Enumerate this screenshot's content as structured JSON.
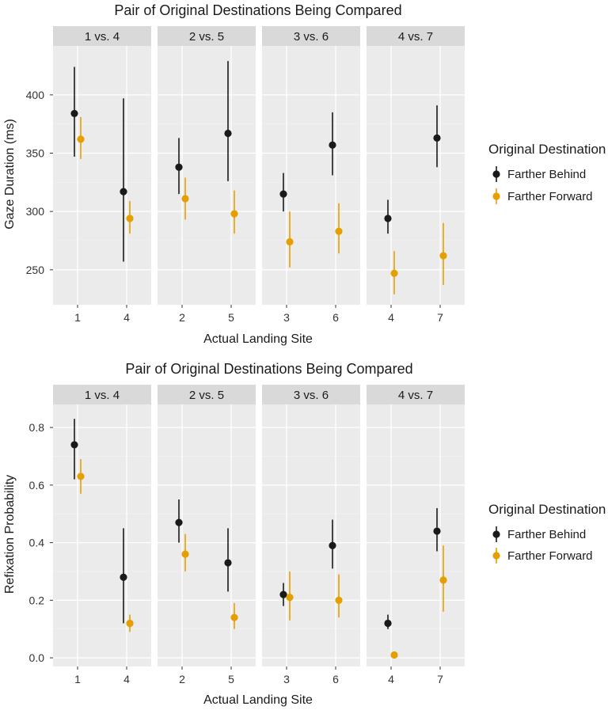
{
  "colors": {
    "behind": "#1a1a1a",
    "forward": "#e69f00"
  },
  "chart_data": [
    {
      "type": "scatter",
      "title": "Pair of Original Destinations Being Compared",
      "xlabel": "Actual Landing Site",
      "ylabel": "Gaze Duration (ms)",
      "ylim": [
        220,
        442
      ],
      "yticks": [
        250,
        300,
        350,
        400
      ],
      "ytick_labels": [
        "250",
        "300",
        "350",
        "400"
      ],
      "legend": {
        "title": "Original Destination",
        "entries": [
          "Farther Behind",
          "Farther Forward"
        ]
      },
      "facets": [
        {
          "label": "1 vs. 4",
          "x": [
            "1",
            "4"
          ],
          "series": [
            {
              "name": "Farther Behind",
              "points": [
                {
                  "mean": 384,
                  "low": 347,
                  "high": 424
                },
                {
                  "mean": 317,
                  "low": 257,
                  "high": 397
                }
              ]
            },
            {
              "name": "Farther Forward",
              "points": [
                {
                  "mean": 362,
                  "low": 345,
                  "high": 381
                },
                {
                  "mean": 294,
                  "low": 281,
                  "high": 309
                }
              ]
            }
          ]
        },
        {
          "label": "2 vs. 5",
          "x": [
            "2",
            "5"
          ],
          "series": [
            {
              "name": "Farther Behind",
              "points": [
                {
                  "mean": 338,
                  "low": 315,
                  "high": 363
                },
                {
                  "mean": 367,
                  "low": 326,
                  "high": 429
                }
              ]
            },
            {
              "name": "Farther Forward",
              "points": [
                {
                  "mean": 311,
                  "low": 293,
                  "high": 329
                },
                {
                  "mean": 298,
                  "low": 281,
                  "high": 318
                }
              ]
            }
          ]
        },
        {
          "label": "3 vs. 6",
          "x": [
            "3",
            "6"
          ],
          "series": [
            {
              "name": "Farther Behind",
              "points": [
                {
                  "mean": 315,
                  "low": 300,
                  "high": 333
                },
                {
                  "mean": 357,
                  "low": 331,
                  "high": 385
                }
              ]
            },
            {
              "name": "Farther Forward",
              "points": [
                {
                  "mean": 274,
                  "low": 252,
                  "high": 300
                },
                {
                  "mean": 283,
                  "low": 264,
                  "high": 307
                }
              ]
            }
          ]
        },
        {
          "label": "4 vs. 7",
          "x": [
            "4",
            "7"
          ],
          "series": [
            {
              "name": "Farther Behind",
              "points": [
                {
                  "mean": 294,
                  "low": 281,
                  "high": 310
                },
                {
                  "mean": 363,
                  "low": 338,
                  "high": 391
                }
              ]
            },
            {
              "name": "Farther Forward",
              "points": [
                {
                  "mean": 247,
                  "low": 229,
                  "high": 266
                },
                {
                  "mean": 262,
                  "low": 237,
                  "high": 290
                }
              ]
            }
          ]
        }
      ]
    },
    {
      "type": "scatter",
      "title": "Pair of Original Destinations Being Compared",
      "xlabel": "Actual Landing Site",
      "ylabel": "Refixation Probability",
      "ylim": [
        -0.03,
        0.88
      ],
      "yticks": [
        0.0,
        0.2,
        0.4,
        0.6,
        0.8
      ],
      "ytick_labels": [
        "0.0",
        "0.2",
        "0.4",
        "0.6",
        "0.8"
      ],
      "legend": {
        "title": "Original Destination",
        "entries": [
          "Farther Behind",
          "Farther Forward"
        ]
      },
      "facets": [
        {
          "label": "1 vs. 4",
          "x": [
            "1",
            "4"
          ],
          "series": [
            {
              "name": "Farther Behind",
              "points": [
                {
                  "mean": 0.74,
                  "low": 0.62,
                  "high": 0.83
                },
                {
                  "mean": 0.28,
                  "low": 0.12,
                  "high": 0.45
                }
              ]
            },
            {
              "name": "Farther Forward",
              "points": [
                {
                  "mean": 0.63,
                  "low": 0.57,
                  "high": 0.69
                },
                {
                  "mean": 0.12,
                  "low": 0.09,
                  "high": 0.15
                }
              ]
            }
          ]
        },
        {
          "label": "2 vs. 5",
          "x": [
            "2",
            "5"
          ],
          "series": [
            {
              "name": "Farther Behind",
              "points": [
                {
                  "mean": 0.47,
                  "low": 0.4,
                  "high": 0.55
                },
                {
                  "mean": 0.33,
                  "low": 0.23,
                  "high": 0.45
                }
              ]
            },
            {
              "name": "Farther Forward",
              "points": [
                {
                  "mean": 0.36,
                  "low": 0.3,
                  "high": 0.43
                },
                {
                  "mean": 0.14,
                  "low": 0.1,
                  "high": 0.19
                }
              ]
            }
          ]
        },
        {
          "label": "3 vs. 6",
          "x": [
            "3",
            "6"
          ],
          "series": [
            {
              "name": "Farther Behind",
              "points": [
                {
                  "mean": 0.22,
                  "low": 0.18,
                  "high": 0.26
                },
                {
                  "mean": 0.39,
                  "low": 0.31,
                  "high": 0.48
                }
              ]
            },
            {
              "name": "Farther Forward",
              "points": [
                {
                  "mean": 0.21,
                  "low": 0.13,
                  "high": 0.3
                },
                {
                  "mean": 0.2,
                  "low": 0.14,
                  "high": 0.29
                }
              ]
            }
          ]
        },
        {
          "label": "4 vs. 7",
          "x": [
            "4",
            "7"
          ],
          "series": [
            {
              "name": "Farther Behind",
              "points": [
                {
                  "mean": 0.12,
                  "low": 0.1,
                  "high": 0.15
                },
                {
                  "mean": 0.44,
                  "low": 0.37,
                  "high": 0.52
                }
              ]
            },
            {
              "name": "Farther Forward",
              "points": [
                {
                  "mean": 0.01,
                  "low": 0.0,
                  "high": 0.02
                },
                {
                  "mean": 0.27,
                  "low": 0.16,
                  "high": 0.39
                }
              ]
            }
          ]
        }
      ]
    }
  ]
}
